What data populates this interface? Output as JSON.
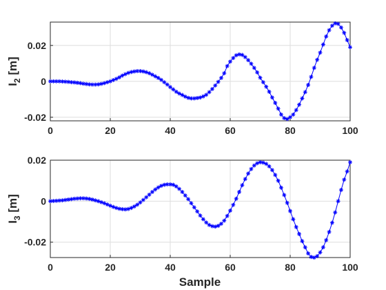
{
  "chart_data": [
    {
      "type": "line",
      "ylabel_main": "I",
      "ylabel_sub": "2",
      "ylabel_unit": " [m]",
      "xlim": [
        0,
        100
      ],
      "ylim": [
        -0.022,
        0.033
      ],
      "xticks": [
        0,
        20,
        40,
        60,
        80,
        100
      ],
      "xtick_labels": [
        "0",
        "20",
        "40",
        "60",
        "80",
        "100"
      ],
      "yticks": [
        -0.02,
        0,
        0.02
      ],
      "ytick_labels": [
        "-0.02",
        "0",
        "0.02"
      ],
      "grid": true,
      "series": [
        {
          "color": "#0000ff",
          "marker": "asterisk",
          "x": [
            0,
            1,
            2,
            3,
            4,
            5,
            6,
            7,
            8,
            9,
            10,
            11,
            12,
            13,
            14,
            15,
            16,
            17,
            18,
            19,
            20,
            21,
            22,
            23,
            24,
            25,
            26,
            27,
            28,
            29,
            30,
            31,
            32,
            33,
            34,
            35,
            36,
            37,
            38,
            39,
            40,
            41,
            42,
            43,
            44,
            45,
            46,
            47,
            48,
            49,
            50,
            51,
            52,
            53,
            54,
            55,
            56,
            57,
            58,
            59,
            60,
            61,
            62,
            63,
            64,
            65,
            66,
            67,
            68,
            69,
            70,
            71,
            72,
            73,
            74,
            75,
            76,
            77,
            78,
            79,
            80,
            81,
            82,
            83,
            84,
            85,
            86,
            87,
            88,
            89,
            90,
            91,
            92,
            93,
            94,
            95,
            96,
            97,
            98,
            99,
            100
          ],
          "y": [
            0,
            0,
            0,
            0,
            -0.0001,
            -0.0002,
            -0.0003,
            -0.0005,
            -0.0006,
            -0.0008,
            -0.001,
            -0.0013,
            -0.0015,
            -0.0017,
            -0.0018,
            -0.0018,
            -0.0017,
            -0.0014,
            -0.001,
            -0.0005,
            0,
            0.0007,
            0.0014,
            0.0022,
            0.0032,
            0.004,
            0.0047,
            0.0052,
            0.0055,
            0.0057,
            0.0057,
            0.0055,
            0.0051,
            0.0045,
            0.0037,
            0.0028,
            0.0019,
            0.0008,
            -0.0005,
            -0.0018,
            -0.0032,
            -0.0045,
            -0.0058,
            -0.0068,
            -0.0076,
            -0.0085,
            -0.0092,
            -0.0095,
            -0.0095,
            -0.0093,
            -0.009,
            -0.0084,
            -0.0075,
            -0.006,
            -0.0043,
            -0.0023,
            -0.0003,
            0.0019,
            0.0045,
            0.0085,
            0.011,
            0.013,
            0.0145,
            0.015,
            0.0147,
            0.0135,
            0.0118,
            0.0098,
            0.0075,
            0.005,
            0.002,
            -0.0005,
            -0.003,
            -0.0058,
            -0.009,
            -0.012,
            -0.0152,
            -0.0185,
            -0.0205,
            -0.021,
            -0.02,
            -0.0185,
            -0.016,
            -0.013,
            -0.0095,
            -0.006,
            -0.002,
            0.0025,
            0.0075,
            0.012,
            0.016,
            0.0205,
            0.025,
            0.0285,
            0.031,
            0.0323,
            0.032,
            0.03,
            0.027,
            0.023,
            0.019
          ]
        }
      ]
    },
    {
      "type": "line",
      "ylabel_main": "I",
      "ylabel_sub": "3",
      "ylabel_unit": " [m]",
      "xlabel": "Sample",
      "xlim": [
        0,
        100
      ],
      "ylim": [
        -0.0275,
        0.02
      ],
      "xticks": [
        0,
        20,
        40,
        60,
        80,
        100
      ],
      "xtick_labels": [
        "0",
        "20",
        "40",
        "60",
        "80",
        "100"
      ],
      "yticks": [
        -0.02,
        0,
        0.02
      ],
      "ytick_labels": [
        "-0.02",
        "0",
        "0.02"
      ],
      "grid": true,
      "series": [
        {
          "color": "#0000ff",
          "marker": "asterisk",
          "x": [
            0,
            1,
            2,
            3,
            4,
            5,
            6,
            7,
            8,
            9,
            10,
            11,
            12,
            13,
            14,
            15,
            16,
            17,
            18,
            19,
            20,
            21,
            22,
            23,
            24,
            25,
            26,
            27,
            28,
            29,
            30,
            31,
            32,
            33,
            34,
            35,
            36,
            37,
            38,
            39,
            40,
            41,
            42,
            43,
            44,
            45,
            46,
            47,
            48,
            49,
            50,
            51,
            52,
            53,
            54,
            55,
            56,
            57,
            58,
            59,
            60,
            61,
            62,
            63,
            64,
            65,
            66,
            67,
            68,
            69,
            70,
            71,
            72,
            73,
            74,
            75,
            76,
            77,
            78,
            79,
            80,
            81,
            82,
            83,
            84,
            85,
            86,
            87,
            88,
            89,
            90,
            91,
            92,
            93,
            94,
            95,
            96,
            97,
            98,
            99,
            100
          ],
          "y": [
            0,
            0.0001,
            0.0002,
            0.0003,
            0.0004,
            0.0006,
            0.0008,
            0.001,
            0.0012,
            0.0013,
            0.0014,
            0.0014,
            0.0013,
            0.0011,
            0.0008,
            0.0004,
            0,
            -0.0005,
            -0.001,
            -0.0016,
            -0.0022,
            -0.0028,
            -0.0033,
            -0.0037,
            -0.0039,
            -0.004,
            -0.0038,
            -0.0033,
            -0.0026,
            -0.0017,
            -0.0006,
            0.0006,
            0.0019,
            0.0032,
            0.0045,
            0.0057,
            0.0067,
            0.0075,
            0.008,
            0.0082,
            0.0082,
            0.008,
            0.0072,
            0.006,
            0.0045,
            0.0028,
            0.001,
            -0.001,
            -0.003,
            -0.005,
            -0.007,
            -0.0088,
            -0.0104,
            -0.0116,
            -0.0122,
            -0.0124,
            -0.012,
            -0.011,
            -0.0095,
            -0.0072,
            -0.0046,
            -0.0018,
            0.0012,
            0.0045,
            0.0078,
            0.0108,
            0.0135,
            0.0157,
            0.0174,
            0.0185,
            0.019,
            0.0188,
            0.0182,
            0.017,
            0.0152,
            0.0128,
            0.01,
            0.0066,
            0.003,
            -0.0008,
            -0.0048,
            -0.0088,
            -0.0126,
            -0.016,
            -0.0195,
            -0.0225,
            -0.0255,
            -0.0272,
            -0.0275,
            -0.0268,
            -0.025,
            -0.0225,
            -0.019,
            -0.015,
            -0.0105,
            -0.0055,
            0,
            0.0055,
            0.0105,
            0.0145,
            0.019
          ]
        }
      ]
    }
  ]
}
